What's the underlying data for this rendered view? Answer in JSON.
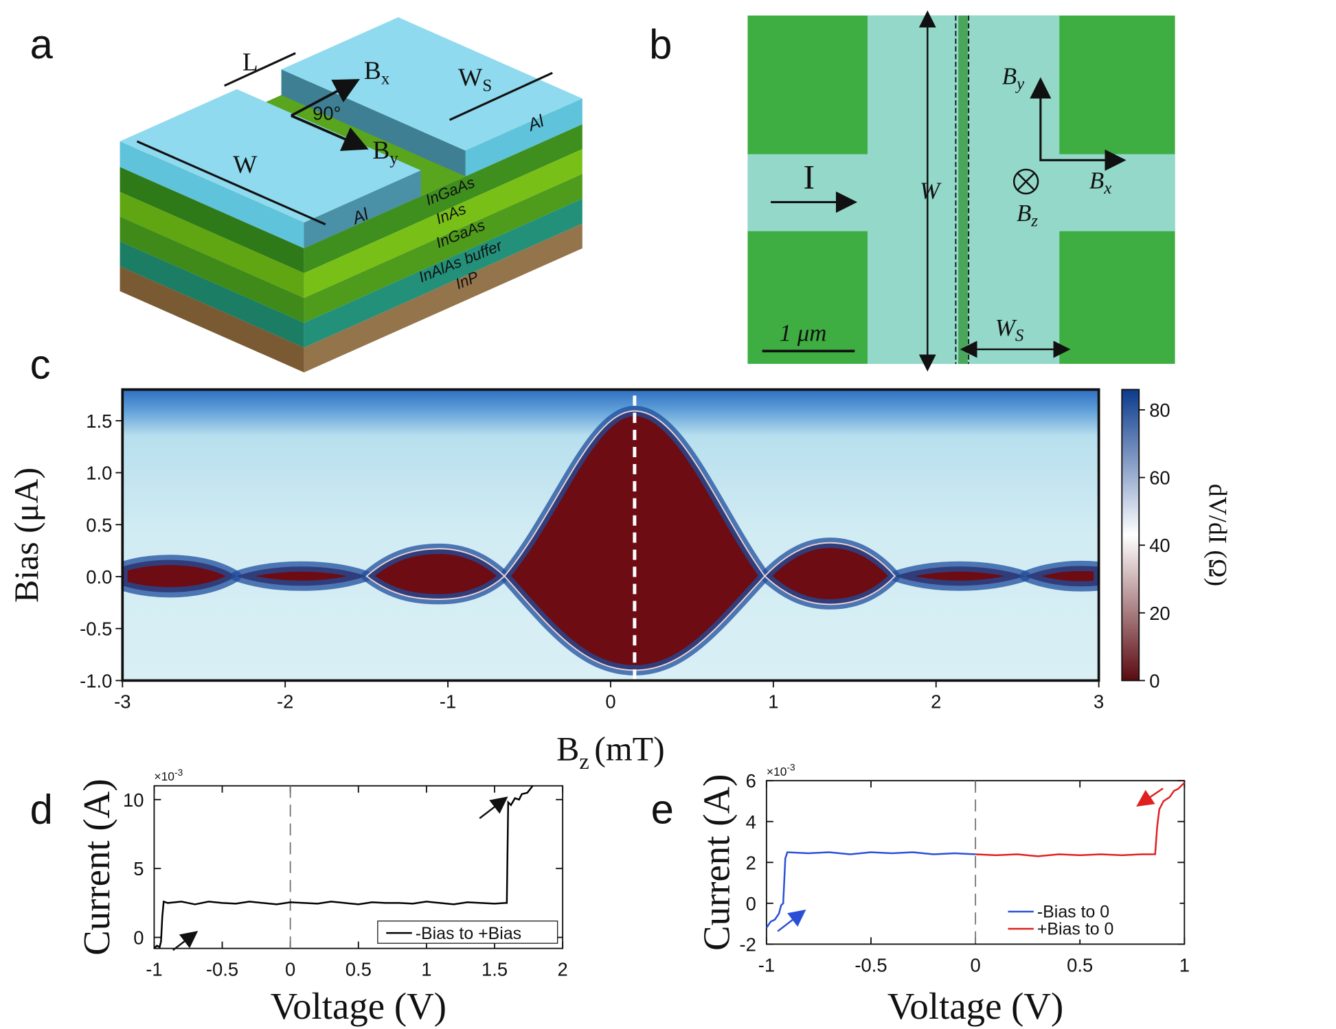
{
  "panel_labels": [
    "a",
    "b",
    "c",
    "d",
    "e"
  ],
  "schematic": {
    "length": "L",
    "field_x": "B",
    "field_x_sub": "x",
    "width_s": "W",
    "width_s_sub": "S",
    "angle": "90°",
    "field_y": "B",
    "field_y_sub": "y",
    "width": "W",
    "contact_right": "Al",
    "contact_left": "Al",
    "layers": [
      "InGaAs",
      "InAs",
      "InGaAs",
      "InAlAs buffer",
      "InP"
    ]
  },
  "micrograph": {
    "width": "W",
    "current": "I",
    "field_y": "B",
    "field_y_sub": "y",
    "field_x": "B",
    "field_x_sub": "x",
    "field_z": "B",
    "field_z_sub": "z",
    "width_s": "W",
    "width_s_sub": "S",
    "scale_bar": "1 μm"
  },
  "chart_data": [
    {
      "type": "heatmap",
      "xlabel": "B",
      "xlabel_sub": "z",
      "xlabel_suffix": "(mT)",
      "ylabel": "Bias (μA)",
      "colorbar_label": "dV/dI (Ω)",
      "xlim": [
        -3,
        3
      ],
      "xticks": [
        -3,
        -2,
        -1,
        0,
        1,
        2,
        3
      ],
      "ylim": [
        -1.0,
        1.8
      ],
      "yticks": [
        {
          "value": -1,
          "label": "-1.0"
        },
        -0.5,
        {
          "value": 0,
          "label": "0.0"
        },
        0.5,
        {
          "value": 1,
          "label": "1.0"
        },
        1.5
      ],
      "clim": [
        0,
        86
      ],
      "cticks": [
        0,
        20,
        40,
        60,
        80
      ],
      "colors": [
        "#5a0a10",
        "#ffffff",
        "#0b3b8c"
      ]
    },
    {
      "type": "line",
      "xlabel": "Voltage (V)",
      "ylabel": "Current (A)",
      "scale_label": "×10",
      "scale_exp": "-3",
      "xlim": [
        -1,
        2
      ],
      "xticks": [
        -1,
        -0.5,
        0,
        0.5,
        1,
        1.5,
        2
      ],
      "ylim": [
        -0.8,
        11
      ],
      "yticks": [
        0,
        5,
        10
      ],
      "legend": "lower right",
      "series": [
        {
          "name": "-Bias to +Bias",
          "color": "#000000",
          "x": [
            -1,
            -0.98,
            -0.96,
            -0.95,
            -0.94,
            -0.93,
            -0.9,
            -0.8,
            -0.7,
            -0.6,
            -0.5,
            -0.4,
            -0.3,
            -0.2,
            -0.1,
            0,
            0.1,
            0.2,
            0.3,
            0.4,
            0.5,
            0.6,
            0.7,
            0.8,
            0.9,
            1,
            1.1,
            1.2,
            1.3,
            1.4,
            1.5,
            1.58,
            1.59,
            1.6,
            1.62,
            1.65,
            1.68,
            1.7,
            1.74,
            1.78
          ],
          "values": [
            -0.8,
            -0.6,
            -0.7,
            -0.3,
            1.5,
            2.6,
            2.5,
            2.6,
            2.4,
            2.6,
            2.5,
            2.45,
            2.6,
            2.5,
            2.4,
            2.55,
            2.5,
            2.45,
            2.6,
            2.5,
            2.4,
            2.55,
            2.5,
            2.5,
            2.45,
            2.6,
            2.5,
            2.4,
            2.55,
            2.5,
            2.45,
            2.5,
            2.5,
            9.8,
            9.6,
            10.1,
            10.0,
            10.4,
            10.5,
            11
          ]
        }
      ]
    },
    {
      "type": "line",
      "xlabel": "Voltage (V)",
      "ylabel": "Current (A)",
      "scale_label": "×10",
      "scale_exp": "-3",
      "xlim": [
        -1,
        1
      ],
      "xticks": [
        -1,
        -0.5,
        0,
        0.5,
        1
      ],
      "ylim": [
        -2,
        6
      ],
      "yticks": [
        -2,
        0,
        2,
        4,
        6
      ],
      "legend": "lower right",
      "series": [
        {
          "name": "-Bias to 0",
          "color": "#2a4fd6",
          "x": [
            -1,
            -0.98,
            -0.96,
            -0.94,
            -0.93,
            -0.92,
            -0.91,
            -0.9,
            -0.8,
            -0.7,
            -0.6,
            -0.5,
            -0.4,
            -0.3,
            -0.2,
            -0.1,
            0
          ],
          "values": [
            -1.2,
            -0.9,
            -0.8,
            -0.5,
            -0.1,
            0,
            2.2,
            2.5,
            2.45,
            2.5,
            2.4,
            2.5,
            2.45,
            2.5,
            2.4,
            2.45,
            2.4
          ]
        },
        {
          "name": "+Bias to 0",
          "color": "#e02020",
          "x": [
            0,
            0.1,
            0.2,
            0.3,
            0.4,
            0.5,
            0.6,
            0.7,
            0.8,
            0.86,
            0.87,
            0.88,
            0.9,
            0.93,
            0.95,
            0.97,
            1
          ],
          "values": [
            2.4,
            2.35,
            2.4,
            2.3,
            2.4,
            2.35,
            2.4,
            2.35,
            2.4,
            2.4,
            3.8,
            4.6,
            5.0,
            5.2,
            5.5,
            5.6,
            5.9
          ]
        }
      ]
    }
  ]
}
